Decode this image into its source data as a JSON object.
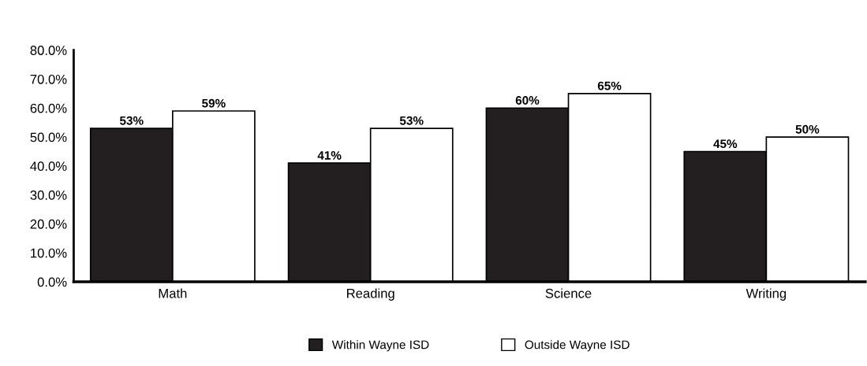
{
  "chart_data": {
    "type": "bar",
    "categories": [
      "Math",
      "Reading",
      "Science",
      "Writing"
    ],
    "series": [
      {
        "name": "Within Wayne ISD",
        "color": "#231f20",
        "values": [
          53,
          41,
          60,
          45
        ],
        "value_labels": [
          "53%",
          "41%",
          "60%",
          "45%"
        ]
      },
      {
        "name": "Outside Wayne ISD",
        "color": "#ffffff",
        "values": [
          59,
          53,
          65,
          50
        ],
        "value_labels": [
          "59%",
          "53%",
          "65%",
          "50%"
        ]
      }
    ],
    "ylim": [
      0,
      80
    ],
    "yticks": [
      {
        "value": 0,
        "label": "0.0%"
      },
      {
        "value": 10,
        "label": "10.0%"
      },
      {
        "value": 20,
        "label": "20.0%"
      },
      {
        "value": 30,
        "label": "30.0%"
      },
      {
        "value": 40,
        "label": "40.0%"
      },
      {
        "value": 50,
        "label": "50.0%"
      },
      {
        "value": 60,
        "label": "60.0%"
      },
      {
        "value": 70,
        "label": "70.0%"
      },
      {
        "value": 80,
        "label": "80.0%"
      }
    ],
    "grid": false,
    "legend": "bottom"
  }
}
